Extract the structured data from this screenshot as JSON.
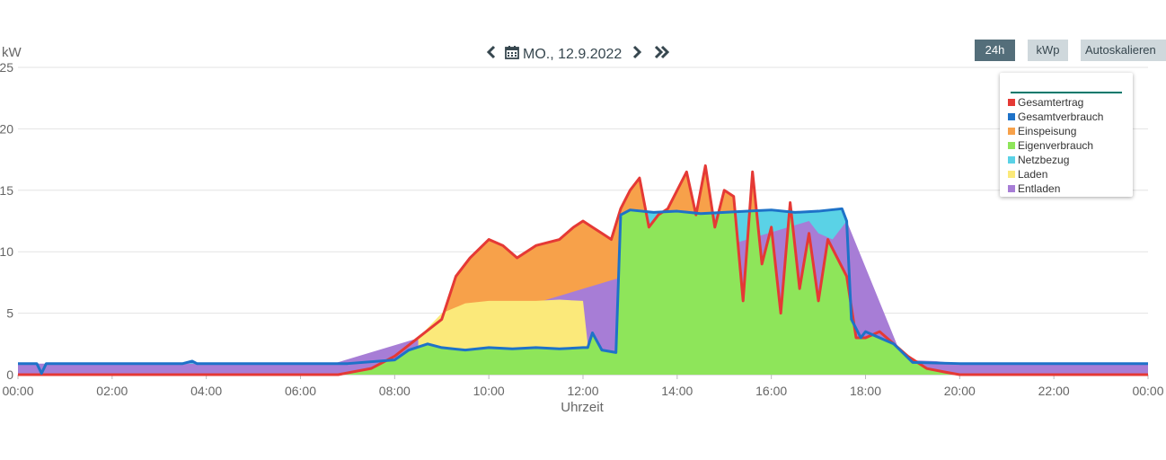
{
  "header": {
    "date": "MO., 12.9.2022",
    "icons": {
      "prev": "chevron-left-icon",
      "calendar": "calendar-icon",
      "next": "chevron-right-icon",
      "last": "double-chevron-right-icon"
    }
  },
  "buttons": {
    "range": "24h",
    "kwp": "kWp",
    "autoscale": "Autoskalieren"
  },
  "legend": {
    "items": [
      {
        "label": "Gesamtertrag",
        "color": "#e53935"
      },
      {
        "label": "Gesamtverbrauch",
        "color": "#1e72c8"
      },
      {
        "label": "Einspeisung",
        "color": "#f7a14a"
      },
      {
        "label": "Eigenverbrauch",
        "color": "#8ee55a"
      },
      {
        "label": "Netzbezug",
        "color": "#5ad2e6"
      },
      {
        "label": "Laden",
        "color": "#fbe97a"
      },
      {
        "label": "Entladen",
        "color": "#a77dd6"
      }
    ]
  },
  "chart_data": {
    "type": "area",
    "xlabel": "Uhrzeit",
    "ylabel": "kW",
    "xlim": [
      0,
      24
    ],
    "ylim": [
      0,
      25
    ],
    "x_ticks": [
      "00:00",
      "02:00",
      "04:00",
      "06:00",
      "08:00",
      "10:00",
      "12:00",
      "14:00",
      "16:00",
      "18:00",
      "20:00",
      "22:00",
      "00:00"
    ],
    "y_ticks": [
      "0",
      "5",
      "10",
      "15",
      "20",
      "25"
    ],
    "grid": true,
    "legend_position": "top-right",
    "series": [
      {
        "name": "Gesamtertrag",
        "color": "#e53935",
        "x": [
          0,
          6.8,
          7.5,
          8,
          8.5,
          9,
          9.3,
          9.6,
          10,
          10.3,
          10.6,
          11,
          11.5,
          11.8,
          12,
          12.2,
          12.4,
          12.6,
          12.8,
          13,
          13.2,
          13.4,
          13.6,
          13.8,
          14,
          14.2,
          14.4,
          14.6,
          14.8,
          15,
          15.2,
          15.4,
          15.6,
          15.8,
          16,
          16.2,
          16.4,
          16.6,
          16.8,
          17,
          17.2,
          17.4,
          17.6,
          17.8,
          18,
          18.3,
          18.6,
          18.9,
          19.3,
          19.7,
          20,
          24
        ],
        "y": [
          0,
          0,
          0.5,
          1.5,
          3,
          4.5,
          8,
          9.5,
          11,
          10.5,
          9.5,
          10.5,
          11,
          12,
          12.5,
          12,
          11.5,
          11,
          13.5,
          15,
          16,
          12,
          13,
          13.5,
          15,
          16.5,
          13,
          17,
          12,
          15,
          14.5,
          6,
          16.5,
          9,
          12,
          5,
          14,
          7,
          11.5,
          6,
          11,
          9.5,
          8,
          3,
          3,
          3.5,
          2.5,
          1.5,
          0.5,
          0.2,
          0,
          0
        ]
      },
      {
        "name": "Gesamtverbrauch",
        "color": "#1e72c8",
        "x": [
          0,
          0.4,
          0.5,
          0.6,
          3.5,
          3.7,
          3.8,
          6.5,
          7,
          8,
          8.3,
          8.7,
          9,
          9.5,
          10,
          10.5,
          11,
          11.5,
          12,
          12.1,
          12.2,
          12.4,
          12.7,
          12.8,
          13,
          13.5,
          14,
          14.5,
          15,
          15.5,
          16,
          16.5,
          17,
          17.5,
          17.6,
          17.7,
          17.9,
          18,
          18.3,
          18.6,
          19,
          20,
          24
        ],
        "y": [
          0.9,
          0.9,
          0.1,
          0.9,
          0.9,
          1.1,
          0.9,
          0.9,
          0.9,
          1.2,
          2,
          2.5,
          2.2,
          2,
          2.2,
          2.1,
          2.2,
          2.1,
          2.2,
          2.2,
          3.4,
          2,
          1.8,
          13,
          13.4,
          13.2,
          13.3,
          13.1,
          13.2,
          13.3,
          13.4,
          13.2,
          13.3,
          13.5,
          12.5,
          4.5,
          3,
          3.5,
          3,
          2.5,
          1,
          0.9,
          0.9
        ]
      },
      {
        "name": "Laden",
        "color": "#fbe97a",
        "x": [
          8.5,
          9,
          9.5,
          10,
          10.5,
          11,
          11.5,
          12,
          12.1
        ],
        "y": [
          3,
          5,
          5.8,
          6,
          6,
          6,
          6.1,
          6,
          2.5
        ]
      },
      {
        "name": "Entladen",
        "color": "#a77dd6",
        "x": [
          0,
          6.7,
          16.8,
          17,
          17.3,
          17.6,
          18.8,
          19.5,
          20,
          24
        ],
        "y": [
          0.9,
          0.9,
          12.5,
          11.5,
          11,
          12.5,
          1.2,
          1.1,
          0.9,
          0.9
        ]
      },
      {
        "name": "Netzbezug",
        "color": "#5ad2e6",
        "x": [
          6.7,
          7,
          15.5,
          16,
          16.5,
          17,
          17.5
        ],
        "y": [
          0.9,
          0.5,
          13.2,
          13.3,
          13.4,
          13.3,
          13.5
        ]
      }
    ]
  }
}
